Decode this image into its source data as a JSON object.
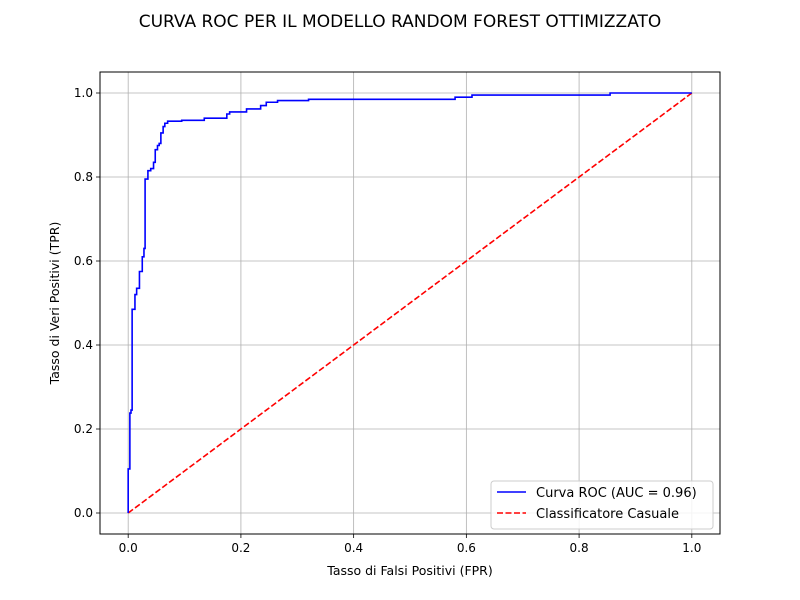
{
  "chart_data": {
    "type": "line",
    "title": "CURVA ROC PER IL MODELLO RANDOM FOREST OTTIMIZZATO",
    "xlabel": "Tasso di Falsi Positivi (FPR)",
    "ylabel": "Tasso di Veri Positivi (TPR)",
    "xlim": [
      -0.05,
      1.05
    ],
    "ylim": [
      -0.05,
      1.05
    ],
    "xticks": [
      "0.0",
      "0.2",
      "0.4",
      "0.6",
      "0.8",
      "1.0"
    ],
    "yticks": [
      "0.0",
      "0.2",
      "0.4",
      "0.6",
      "0.8",
      "1.0"
    ],
    "grid": true,
    "legend_position": "lower-right",
    "series": [
      {
        "name": "Curva ROC (AUC = 0.96)",
        "color": "#0000ff",
        "style": "solid",
        "x": [
          0.0,
          0.0,
          0.003,
          0.003,
          0.005,
          0.005,
          0.007,
          0.007,
          0.012,
          0.012,
          0.015,
          0.015,
          0.02,
          0.02,
          0.025,
          0.025,
          0.028,
          0.028,
          0.03,
          0.03,
          0.035,
          0.035,
          0.04,
          0.04,
          0.045,
          0.045,
          0.048,
          0.048,
          0.052,
          0.052,
          0.055,
          0.055,
          0.058,
          0.058,
          0.062,
          0.062,
          0.065,
          0.065,
          0.07,
          0.07,
          0.095,
          0.095,
          0.135,
          0.135,
          0.175,
          0.175,
          0.18,
          0.18,
          0.21,
          0.21,
          0.235,
          0.235,
          0.245,
          0.245,
          0.265,
          0.265,
          0.32,
          0.32,
          0.58,
          0.58,
          0.61,
          0.61,
          0.855,
          0.855,
          1.0
        ],
        "y": [
          0.0,
          0.105,
          0.105,
          0.238,
          0.238,
          0.245,
          0.245,
          0.485,
          0.485,
          0.52,
          0.52,
          0.535,
          0.535,
          0.575,
          0.575,
          0.61,
          0.61,
          0.63,
          0.63,
          0.795,
          0.795,
          0.815,
          0.815,
          0.82,
          0.82,
          0.835,
          0.835,
          0.865,
          0.865,
          0.875,
          0.875,
          0.88,
          0.88,
          0.905,
          0.905,
          0.92,
          0.92,
          0.928,
          0.928,
          0.933,
          0.933,
          0.935,
          0.935,
          0.94,
          0.94,
          0.95,
          0.95,
          0.955,
          0.955,
          0.962,
          0.962,
          0.97,
          0.97,
          0.978,
          0.978,
          0.982,
          0.982,
          0.985,
          0.985,
          0.99,
          0.99,
          0.995,
          0.995,
          1.0,
          1.0
        ]
      },
      {
        "name": "Classificatore Casuale",
        "color": "#ff0000",
        "style": "dashed",
        "x": [
          0.0,
          1.0
        ],
        "y": [
          0.0,
          1.0
        ]
      }
    ]
  }
}
